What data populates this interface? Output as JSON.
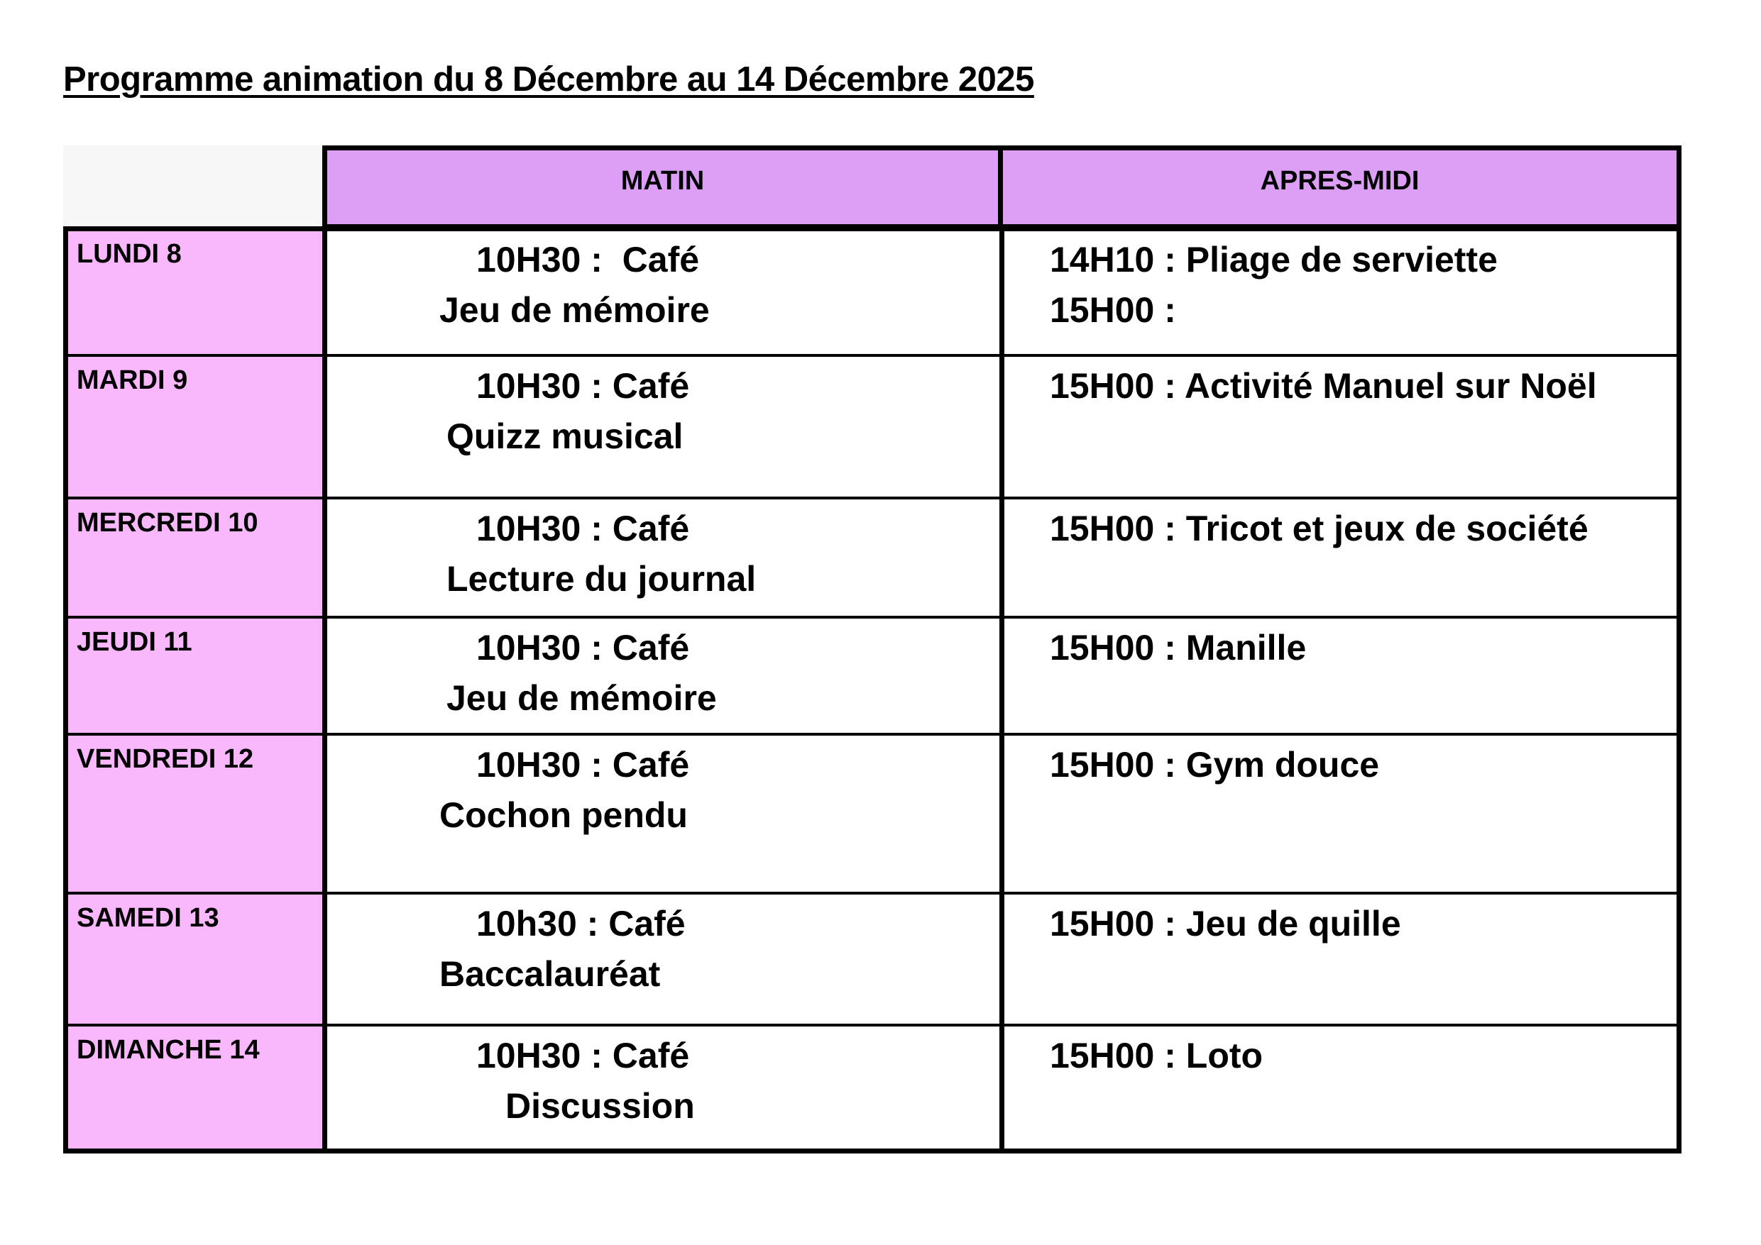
{
  "title": "Programme animation du 8 Décembre au 14 Décembre 2025",
  "colors": {
    "header": "#dd9ff5",
    "day": "#f9b8fb",
    "corner": "#f7f7f7"
  },
  "headers": {
    "matin": "MATIN",
    "apres_midi": "APRES-MIDI"
  },
  "rows": [
    {
      "day": "LUNDI 8",
      "matin": [
        "10H30 :  Café",
        "Jeu de mémoire"
      ],
      "apres_midi": [
        "14H10 : Pliage de serviette",
        "15H00 :"
      ]
    },
    {
      "day": "MARDI 9",
      "matin": [
        "10H30 : Café",
        "Quizz musical"
      ],
      "apres_midi": [
        "15H00 : Activité Manuel sur Noël"
      ]
    },
    {
      "day": "MERCREDI 10",
      "matin": [
        "10H30 : Café",
        "Lecture du journal"
      ],
      "apres_midi": [
        "15H00 : Tricot et jeux de société"
      ]
    },
    {
      "day": "JEUDI 11",
      "matin": [
        "10H30 : Café",
        "Jeu de mémoire"
      ],
      "apres_midi": [
        "15H00 : Manille"
      ]
    },
    {
      "day": "VENDREDI 12",
      "matin": [
        "10H30 : Café",
        "Cochon pendu"
      ],
      "apres_midi": [
        "15H00 : Gym douce"
      ]
    },
    {
      "day": "SAMEDI 13",
      "matin": [
        "10h30 : Café",
        "Baccalauréat"
      ],
      "apres_midi": [
        "15H00 :  Jeu de quille"
      ]
    },
    {
      "day": "DIMANCHE 14",
      "matin": [
        "10H30 : Café",
        "Discussion"
      ],
      "apres_midi": [
        "15H00 : Loto"
      ]
    }
  ]
}
